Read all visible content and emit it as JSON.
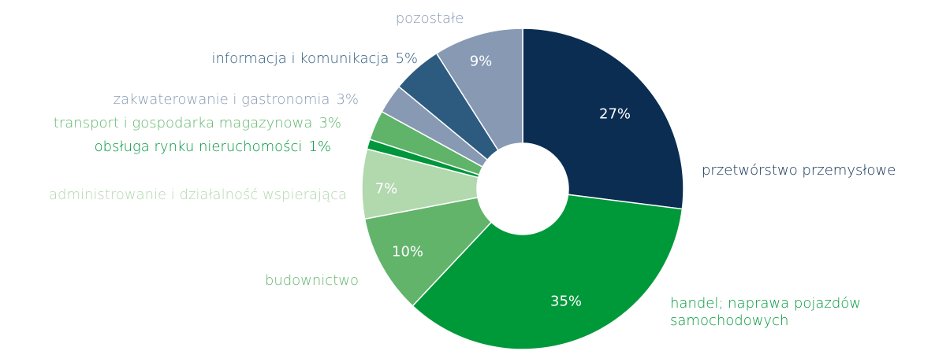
{
  "chart_data": {
    "type": "donut",
    "categories": [
      "przetwórstwo przemysłowe",
      "handel;  naprawa pojazdów samochodowych",
      "budownictwo",
      "administrowanie i działalność wspierająca",
      "obsługa rynku nieruchomości",
      "transport i gospodarka magazynowa",
      "zakwaterowanie i gastronomia",
      "informacja i komunikacja",
      "pozostałe"
    ],
    "values": [
      27,
      35,
      10,
      7,
      1,
      3,
      3,
      5,
      9
    ],
    "value_labels": [
      "27%",
      "35%",
      "10%",
      "7%",
      "1%",
      "3%",
      "3%",
      "5%",
      "9%"
    ],
    "colors": [
      "#0b2d52",
      "#00993a",
      "#62b46b",
      "#b2d8ae",
      "#00963c",
      "#5fb46a",
      "#8799b3",
      "#2d5b80",
      "#8799b3"
    ]
  }
}
